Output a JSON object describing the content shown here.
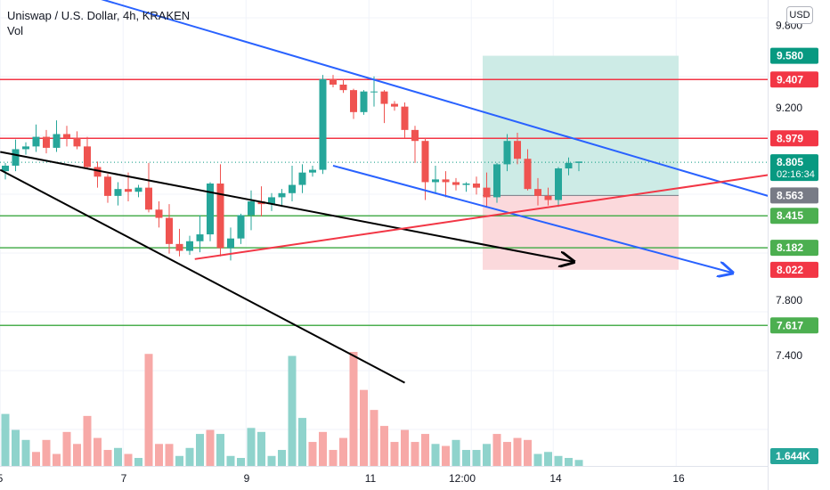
{
  "chart_data": {
    "type": "candlestick",
    "title": "Uniswap / U.S. Dollar, 4h, KRAKEN",
    "volume_label": "Vol",
    "currency": "USD",
    "ylim": [
      7.2,
      9.96
    ],
    "y_ticks": [
      "9.800",
      "9.200",
      "7.800",
      "7.400"
    ],
    "x_ticks": [
      "5",
      "7",
      "9",
      "11",
      "12:00",
      "14",
      "16"
    ],
    "candles": [
      [
        8.74,
        8.8,
        8.68,
        8.78
      ],
      [
        8.78,
        8.97,
        8.74,
        8.9
      ],
      [
        8.9,
        8.95,
        8.86,
        8.92
      ],
      [
        8.92,
        9.08,
        8.88,
        8.99
      ],
      [
        8.99,
        9.04,
        8.87,
        8.91
      ],
      [
        8.91,
        9.11,
        8.88,
        9.01
      ],
      [
        9.01,
        9.07,
        8.92,
        8.98
      ],
      [
        8.98,
        9.03,
        8.9,
        8.92
      ],
      [
        8.92,
        8.99,
        8.76,
        8.77
      ],
      [
        8.77,
        8.81,
        8.62,
        8.7
      ],
      [
        8.7,
        8.72,
        8.51,
        8.56
      ],
      [
        8.56,
        8.66,
        8.49,
        8.61
      ],
      [
        8.61,
        8.73,
        8.52,
        8.59
      ],
      [
        8.59,
        8.64,
        8.55,
        8.62
      ],
      [
        8.62,
        8.8,
        8.44,
        8.46
      ],
      [
        8.46,
        8.52,
        8.33,
        8.4
      ],
      [
        8.4,
        8.5,
        8.14,
        8.21
      ],
      [
        8.21,
        8.32,
        8.12,
        8.16
      ],
      [
        8.16,
        8.27,
        8.13,
        8.23
      ],
      [
        8.23,
        8.42,
        8.15,
        8.28
      ],
      [
        8.28,
        8.66,
        8.23,
        8.65
      ],
      [
        8.65,
        8.79,
        8.12,
        8.18
      ],
      [
        8.18,
        8.33,
        8.09,
        8.25
      ],
      [
        8.25,
        8.43,
        8.21,
        8.42
      ],
      [
        8.42,
        8.6,
        8.31,
        8.52
      ],
      [
        8.52,
        8.63,
        8.41,
        8.5
      ],
      [
        8.5,
        8.58,
        8.45,
        8.55
      ],
      [
        8.55,
        8.61,
        8.48,
        8.58
      ],
      [
        8.58,
        8.78,
        8.52,
        8.64
      ],
      [
        8.64,
        8.79,
        8.58,
        8.73
      ],
      [
        8.73,
        8.78,
        8.7,
        8.75
      ],
      [
        8.75,
        9.44,
        8.72,
        9.41
      ],
      [
        9.41,
        9.44,
        9.35,
        9.37
      ],
      [
        9.37,
        9.41,
        9.31,
        9.33
      ],
      [
        9.33,
        9.34,
        9.12,
        9.17
      ],
      [
        9.17,
        9.33,
        9.15,
        9.32
      ],
      [
        9.32,
        9.43,
        9.21,
        9.32
      ],
      [
        9.32,
        9.33,
        9.09,
        9.23
      ],
      [
        9.23,
        9.25,
        9.18,
        9.21
      ],
      [
        9.21,
        9.24,
        8.98,
        9.04
      ],
      [
        9.04,
        9.07,
        8.8,
        8.96
      ],
      [
        8.96,
        8.98,
        8.53,
        8.66
      ],
      [
        8.66,
        8.78,
        8.58,
        8.68
      ],
      [
        8.68,
        8.74,
        8.55,
        8.66
      ],
      [
        8.66,
        8.69,
        8.6,
        8.64
      ],
      [
        8.64,
        8.66,
        8.59,
        8.65
      ],
      [
        8.65,
        8.7,
        8.57,
        8.62
      ],
      [
        8.62,
        8.73,
        8.48,
        8.55
      ],
      [
        8.55,
        8.8,
        8.51,
        8.79
      ],
      [
        8.79,
        9.01,
        8.74,
        8.96
      ],
      [
        8.96,
        9.02,
        8.79,
        8.83
      ],
      [
        8.83,
        8.9,
        8.6,
        8.61
      ],
      [
        8.61,
        8.69,
        8.49,
        8.56
      ],
      [
        8.56,
        8.62,
        8.49,
        8.53
      ],
      [
        8.53,
        8.77,
        8.48,
        8.76
      ],
      [
        8.76,
        8.84,
        8.71,
        8.8
      ],
      [
        8.8,
        8.81,
        8.74,
        8.81
      ]
    ],
    "volume": [
      {
        "v": 0.26,
        "up": true
      },
      {
        "v": 0.18,
        "up": true
      },
      {
        "v": 0.13,
        "up": true
      },
      {
        "v": 0.07,
        "up": false
      },
      {
        "v": 0.13,
        "up": false
      },
      {
        "v": 0.06,
        "up": false
      },
      {
        "v": 0.17,
        "up": false
      },
      {
        "v": 0.11,
        "up": false
      },
      {
        "v": 0.25,
        "up": false
      },
      {
        "v": 0.14,
        "up": false
      },
      {
        "v": 0.08,
        "up": false
      },
      {
        "v": 0.09,
        "up": true
      },
      {
        "v": 0.06,
        "up": false
      },
      {
        "v": 0.04,
        "up": true
      },
      {
        "v": 0.56,
        "up": false
      },
      {
        "v": 0.11,
        "up": false
      },
      {
        "v": 0.11,
        "up": false
      },
      {
        "v": 0.05,
        "up": true
      },
      {
        "v": 0.09,
        "up": true
      },
      {
        "v": 0.16,
        "up": true
      },
      {
        "v": 0.18,
        "up": false
      },
      {
        "v": 0.16,
        "up": true
      },
      {
        "v": 0.05,
        "up": true
      },
      {
        "v": 0.04,
        "up": true
      },
      {
        "v": 0.19,
        "up": true
      },
      {
        "v": 0.17,
        "up": true
      },
      {
        "v": 0.05,
        "up": true
      },
      {
        "v": 0.08,
        "up": true
      },
      {
        "v": 0.55,
        "up": true
      },
      {
        "v": 0.24,
        "up": true
      },
      {
        "v": 0.12,
        "up": false
      },
      {
        "v": 0.17,
        "up": false
      },
      {
        "v": 0.08,
        "up": false
      },
      {
        "v": 0.14,
        "up": false
      },
      {
        "v": 0.57,
        "up": false
      },
      {
        "v": 0.38,
        "up": false
      },
      {
        "v": 0.28,
        "up": false
      },
      {
        "v": 0.2,
        "up": false
      },
      {
        "v": 0.12,
        "up": false
      },
      {
        "v": 0.18,
        "up": false
      },
      {
        "v": 0.12,
        "up": false
      },
      {
        "v": 0.16,
        "up": false
      },
      {
        "v": 0.11,
        "up": true
      },
      {
        "v": 0.1,
        "up": false
      },
      {
        "v": 0.13,
        "up": true
      },
      {
        "v": 0.08,
        "up": true
      },
      {
        "v": 0.08,
        "up": true
      },
      {
        "v": 0.11,
        "up": true
      },
      {
        "v": 0.16,
        "up": false
      },
      {
        "v": 0.12,
        "up": false
      },
      {
        "v": 0.14,
        "up": false
      },
      {
        "v": 0.13,
        "up": false
      },
      {
        "v": 0.06,
        "up": true
      },
      {
        "v": 0.07,
        "up": true
      },
      {
        "v": 0.05,
        "up": true
      },
      {
        "v": 0.04,
        "up": true
      },
      {
        "v": 0.03,
        "up": true
      }
    ],
    "horizontal_levels": [
      {
        "price": 9.407,
        "color": "#f23645"
      },
      {
        "price": 8.979,
        "color": "#f23645"
      },
      {
        "price": 8.415,
        "color": "#4caf50"
      },
      {
        "price": 8.182,
        "color": "#4caf50"
      },
      {
        "price": 7.617,
        "color": "#4caf50"
      }
    ],
    "price_labels": [
      {
        "text": "9.580",
        "price": 9.58,
        "bg": "#089981",
        "fg": "#ffffff"
      },
      {
        "text": "9.407",
        "price": 9.407,
        "bg": "#f23645",
        "fg": "#ffffff"
      },
      {
        "text": "8.979",
        "price": 8.979,
        "bg": "#f23645",
        "fg": "#ffffff"
      },
      {
        "text": "8.805",
        "price": 8.805,
        "bg": "#089981",
        "fg": "#ffffff",
        "sub": "02:16:34"
      },
      {
        "text": "8.563",
        "price": 8.563,
        "bg": "#787b86",
        "fg": "#ffffff"
      },
      {
        "text": "8.415",
        "price": 8.415,
        "bg": "#4caf50",
        "fg": "#ffffff"
      },
      {
        "text": "8.182",
        "price": 8.182,
        "bg": "#4caf50",
        "fg": "#ffffff"
      },
      {
        "text": "8.022",
        "price": 8.022,
        "bg": "#f23645",
        "fg": "#ffffff"
      },
      {
        "text": "7.617",
        "price": 7.617,
        "bg": "#4caf50",
        "fg": "#ffffff"
      }
    ],
    "volume_label_value": "1.644K",
    "position": {
      "entry": 8.563,
      "target": 9.58,
      "stop": 8.022
    },
    "trend_lines": [
      {
        "from": [
          -0.5,
          8.88
        ],
        "to": [
          55.5,
          8.08
        ],
        "color": "#000000",
        "arrow": true
      },
      {
        "from": [
          -0.5,
          8.75
        ],
        "to": [
          39,
          7.2
        ],
        "color": "#000000",
        "arrow": false
      },
      {
        "from": [
          9.0,
          10.0
        ],
        "to": [
          99,
          8.02
        ],
        "color": "#2962ff",
        "arrow": false
      },
      {
        "from": [
          32,
          8.78
        ],
        "to": [
          71,
          8.0
        ],
        "color": "#2962ff",
        "arrow": true
      },
      {
        "from": [
          18.5,
          8.1
        ],
        "to": [
          99,
          8.98
        ],
        "color": "#f23645",
        "arrow": false
      }
    ],
    "colors": {
      "up": "#26a69a",
      "down": "#ef5350",
      "up_vol": "#8fd3cc",
      "down_vol": "#f7a9a7",
      "grid": "#f0f3fa",
      "text": "#131722",
      "current": "#089981",
      "target_zone": "#cdebe6",
      "stop_zone": "#fbd9dc"
    }
  }
}
